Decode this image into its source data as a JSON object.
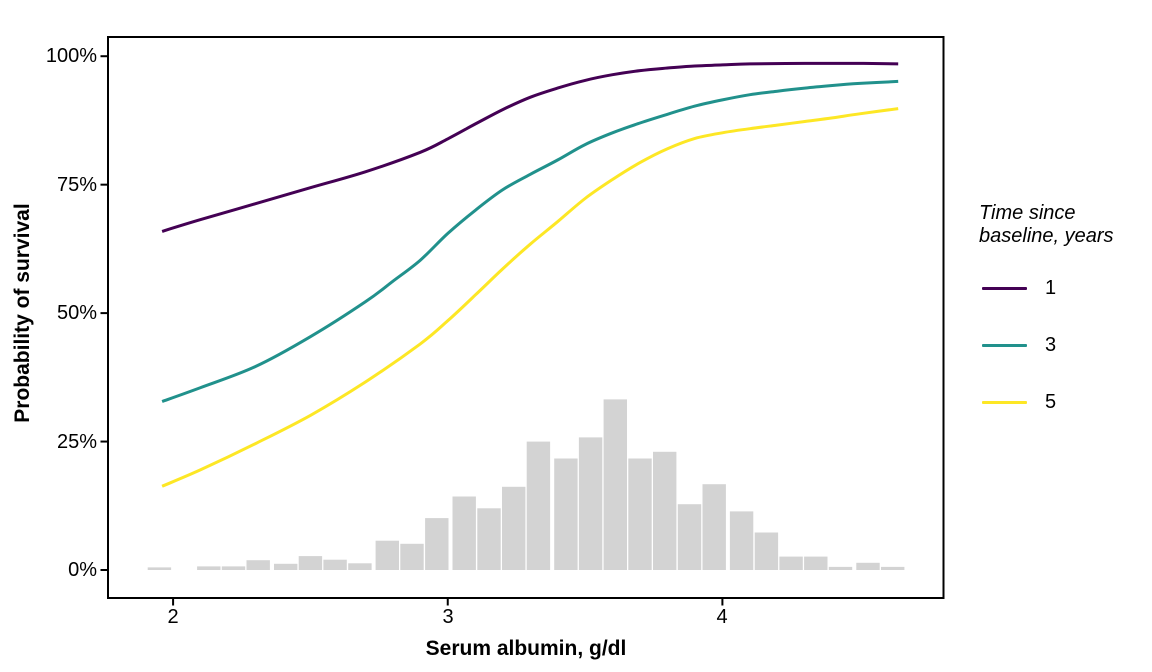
{
  "chart_data": {
    "type": "line",
    "subtype": "survival-curves-with-histogram",
    "title": "",
    "x_label": "Serum albumin, g/dl",
    "y_label": "Probability of survival",
    "x_domain": [
      1.763,
      4.805
    ],
    "y_domain_pct": [
      -5.45,
      103.74
    ],
    "grid": "off",
    "panel_border_color": "#000000",
    "axis_text_color": "#000000",
    "x_ticks": [
      {
        "value": 2,
        "label": "2"
      },
      {
        "value": 3,
        "label": "3"
      },
      {
        "value": 4,
        "label": "4"
      }
    ],
    "y_ticks": [
      {
        "value": 0,
        "label": "0%"
      },
      {
        "value": 25,
        "label": "25%"
      },
      {
        "value": 50,
        "label": "50%"
      },
      {
        "value": 75,
        "label": "75%"
      },
      {
        "value": 100,
        "label": "100%"
      }
    ],
    "legend": {
      "title": "Time since baseline, years",
      "position": "right",
      "items": [
        "1",
        "3",
        "5"
      ]
    },
    "series": [
      {
        "name": "1",
        "color": "#440154",
        "points": [
          [
            1.96,
            65.9
          ],
          [
            2.1,
            68.2
          ],
          [
            2.3,
            71.3
          ],
          [
            2.5,
            74.4
          ],
          [
            2.7,
            77.5
          ],
          [
            2.9,
            81.3
          ],
          [
            3.0,
            83.9
          ],
          [
            3.1,
            86.8
          ],
          [
            3.2,
            89.6
          ],
          [
            3.3,
            92.0
          ],
          [
            3.4,
            93.8
          ],
          [
            3.5,
            95.3
          ],
          [
            3.6,
            96.4
          ],
          [
            3.7,
            97.2
          ],
          [
            3.8,
            97.7
          ],
          [
            3.9,
            98.1
          ],
          [
            4.0,
            98.3
          ],
          [
            4.1,
            98.5
          ],
          [
            4.3,
            98.6
          ],
          [
            4.5,
            98.6
          ],
          [
            4.64,
            98.5
          ]
        ]
      },
      {
        "name": "3",
        "color": "#21918c",
        "points": [
          [
            1.96,
            32.8
          ],
          [
            2.1,
            35.5
          ],
          [
            2.3,
            39.6
          ],
          [
            2.5,
            45.4
          ],
          [
            2.7,
            52.2
          ],
          [
            2.8,
            56.2
          ],
          [
            2.9,
            60.3
          ],
          [
            3.0,
            65.5
          ],
          [
            3.1,
            70.0
          ],
          [
            3.2,
            74.0
          ],
          [
            3.3,
            77.0
          ],
          [
            3.4,
            79.8
          ],
          [
            3.5,
            82.8
          ],
          [
            3.6,
            85.1
          ],
          [
            3.7,
            87.0
          ],
          [
            3.8,
            88.7
          ],
          [
            3.9,
            90.3
          ],
          [
            4.0,
            91.5
          ],
          [
            4.1,
            92.5
          ],
          [
            4.2,
            93.2
          ],
          [
            4.3,
            93.8
          ],
          [
            4.4,
            94.3
          ],
          [
            4.5,
            94.7
          ],
          [
            4.64,
            95.1
          ]
        ]
      },
      {
        "name": "5",
        "color": "#fde725",
        "points": [
          [
            1.96,
            16.3
          ],
          [
            2.1,
            19.5
          ],
          [
            2.3,
            24.6
          ],
          [
            2.5,
            30.1
          ],
          [
            2.7,
            36.6
          ],
          [
            2.9,
            44.0
          ],
          [
            3.0,
            48.5
          ],
          [
            3.1,
            53.5
          ],
          [
            3.2,
            58.6
          ],
          [
            3.3,
            63.4
          ],
          [
            3.4,
            67.8
          ],
          [
            3.5,
            72.3
          ],
          [
            3.6,
            76.0
          ],
          [
            3.7,
            79.3
          ],
          [
            3.8,
            82.0
          ],
          [
            3.9,
            84.0
          ],
          [
            4.0,
            85.1
          ],
          [
            4.1,
            85.9
          ],
          [
            4.2,
            86.6
          ],
          [
            4.3,
            87.3
          ],
          [
            4.4,
            88.0
          ],
          [
            4.5,
            88.8
          ],
          [
            4.64,
            89.8
          ]
        ]
      }
    ],
    "histogram": {
      "color": "#d3d3d3",
      "bin_width": 0.0917,
      "units": "percent_of_sample",
      "bins": [
        [
          1.95,
          0.5
        ],
        [
          2.13,
          0.7
        ],
        [
          2.22,
          0.7
        ],
        [
          2.31,
          1.9
        ],
        [
          2.41,
          1.2
        ],
        [
          2.5,
          2.7
        ],
        [
          2.59,
          2.0
        ],
        [
          2.68,
          1.3
        ],
        [
          2.78,
          5.7
        ],
        [
          2.87,
          5.1
        ],
        [
          2.96,
          10.1
        ],
        [
          3.06,
          14.3
        ],
        [
          3.15,
          12.0
        ],
        [
          3.24,
          16.2
        ],
        [
          3.33,
          25.0
        ],
        [
          3.43,
          21.7
        ],
        [
          3.52,
          25.8
        ],
        [
          3.61,
          33.2
        ],
        [
          3.7,
          21.7
        ],
        [
          3.79,
          23.0
        ],
        [
          3.88,
          12.8
        ],
        [
          3.97,
          16.7
        ],
        [
          4.07,
          11.4
        ],
        [
          4.16,
          7.3
        ],
        [
          4.25,
          2.6
        ],
        [
          4.34,
          2.6
        ],
        [
          4.43,
          0.6
        ],
        [
          4.53,
          1.4
        ],
        [
          4.62,
          0.6
        ]
      ]
    }
  }
}
